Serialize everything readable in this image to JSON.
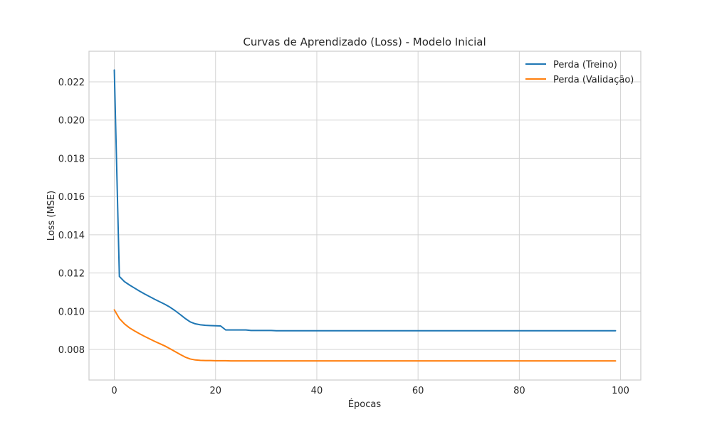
{
  "chart_data": {
    "type": "line",
    "title": "Curvas de Aprendizado (Loss) - Modelo Inicial",
    "xlabel": "Épocas",
    "ylabel": "Loss (MSE)",
    "xlim": [
      -5,
      104
    ],
    "ylim": [
      0.0064,
      0.0236
    ],
    "xticks": [
      0,
      20,
      40,
      60,
      80,
      100
    ],
    "xtick_labels": [
      "0",
      "20",
      "40",
      "60",
      "80",
      "100"
    ],
    "yticks": [
      0.008,
      0.01,
      0.012,
      0.014,
      0.016,
      0.018,
      0.02,
      0.022
    ],
    "ytick_labels": [
      "0.008",
      "0.010",
      "0.012",
      "0.014",
      "0.016",
      "0.018",
      "0.020",
      "0.022"
    ],
    "grid": true,
    "legend_position": "top-right",
    "series": [
      {
        "name": "Perda (Treino)",
        "color": "#1f77b4",
        "x": [
          0,
          1,
          2,
          3,
          4,
          5,
          6,
          7,
          8,
          9,
          10,
          11,
          12,
          13,
          14,
          15,
          16,
          17,
          18,
          19,
          20,
          21,
          22,
          23,
          24,
          25,
          26,
          27,
          28,
          29,
          30,
          31,
          32,
          33,
          34,
          35,
          36,
          37,
          38,
          39,
          40,
          41,
          42,
          43,
          44,
          45,
          46,
          47,
          48,
          49,
          50,
          51,
          52,
          53,
          54,
          55,
          56,
          57,
          58,
          59,
          60,
          61,
          62,
          63,
          64,
          65,
          66,
          67,
          68,
          69,
          70,
          71,
          72,
          73,
          74,
          75,
          76,
          77,
          78,
          79,
          80,
          81,
          82,
          83,
          84,
          85,
          86,
          87,
          88,
          89,
          90,
          91,
          92,
          93,
          94,
          95,
          96,
          97,
          98,
          99
        ],
        "y": [
          0.02262,
          0.01182,
          0.01155,
          0.01137,
          0.01121,
          0.01105,
          0.0109,
          0.01076,
          0.01062,
          0.01049,
          0.01036,
          0.01021,
          0.01003,
          0.00983,
          0.00962,
          0.00944,
          0.00934,
          0.00929,
          0.00926,
          0.00925,
          0.00924,
          0.00923,
          0.00902,
          0.00902,
          0.00902,
          0.00902,
          0.00902,
          0.00899,
          0.00899,
          0.00899,
          0.00899,
          0.00899,
          0.00898,
          0.00898,
          0.00898,
          0.00898,
          0.00898,
          0.00898,
          0.00898,
          0.00898,
          0.00898,
          0.00898,
          0.00898,
          0.00898,
          0.00898,
          0.00898,
          0.00898,
          0.00898,
          0.00898,
          0.00898,
          0.00898,
          0.00898,
          0.00898,
          0.00898,
          0.00898,
          0.00898,
          0.00898,
          0.00898,
          0.00898,
          0.00898,
          0.00898,
          0.00898,
          0.00898,
          0.00898,
          0.00898,
          0.00898,
          0.00898,
          0.00898,
          0.00898,
          0.00898,
          0.00898,
          0.00898,
          0.00898,
          0.00898,
          0.00898,
          0.00898,
          0.00898,
          0.00898,
          0.00898,
          0.00898,
          0.00898,
          0.00898,
          0.00898,
          0.00898,
          0.00898,
          0.00898,
          0.00898,
          0.00898,
          0.00898,
          0.00898,
          0.00898,
          0.00898,
          0.00898,
          0.00898,
          0.00898,
          0.00898,
          0.00898,
          0.00898,
          0.00898,
          0.00898
        ]
      },
      {
        "name": "Perda (Validação)",
        "color": "#ff7f0e",
        "x": [
          0,
          1,
          2,
          3,
          4,
          5,
          6,
          7,
          8,
          9,
          10,
          11,
          12,
          13,
          14,
          15,
          16,
          17,
          18,
          19,
          20,
          21,
          22,
          23,
          24,
          25,
          26,
          27,
          28,
          29,
          30,
          31,
          32,
          33,
          34,
          35,
          36,
          37,
          38,
          39,
          40,
          41,
          42,
          43,
          44,
          45,
          46,
          47,
          48,
          49,
          50,
          51,
          52,
          53,
          54,
          55,
          56,
          57,
          58,
          59,
          60,
          61,
          62,
          63,
          64,
          65,
          66,
          67,
          68,
          69,
          70,
          71,
          72,
          73,
          74,
          75,
          76,
          77,
          78,
          79,
          80,
          81,
          82,
          83,
          84,
          85,
          86,
          87,
          88,
          89,
          90,
          91,
          92,
          93,
          94,
          95,
          96,
          97,
          98,
          99
        ],
        "y": [
          0.01007,
          0.00962,
          0.00934,
          0.00913,
          0.00897,
          0.00882,
          0.00868,
          0.00855,
          0.00842,
          0.0083,
          0.00818,
          0.00804,
          0.00789,
          0.00774,
          0.0076,
          0.0075,
          0.00745,
          0.00743,
          0.00742,
          0.00742,
          0.00741,
          0.00741,
          0.00741,
          0.0074,
          0.0074,
          0.0074,
          0.0074,
          0.0074,
          0.0074,
          0.0074,
          0.0074,
          0.0074,
          0.0074,
          0.0074,
          0.0074,
          0.0074,
          0.0074,
          0.0074,
          0.0074,
          0.0074,
          0.0074,
          0.0074,
          0.0074,
          0.0074,
          0.0074,
          0.0074,
          0.0074,
          0.0074,
          0.0074,
          0.0074,
          0.0074,
          0.0074,
          0.0074,
          0.0074,
          0.0074,
          0.0074,
          0.0074,
          0.0074,
          0.0074,
          0.0074,
          0.0074,
          0.0074,
          0.0074,
          0.0074,
          0.0074,
          0.0074,
          0.0074,
          0.0074,
          0.0074,
          0.0074,
          0.0074,
          0.0074,
          0.0074,
          0.0074,
          0.0074,
          0.0074,
          0.0074,
          0.0074,
          0.0074,
          0.0074,
          0.0074,
          0.0074,
          0.0074,
          0.0074,
          0.0074,
          0.0074,
          0.0074,
          0.0074,
          0.0074,
          0.0074,
          0.0074,
          0.0074,
          0.0074,
          0.0074,
          0.0074,
          0.0074,
          0.0074,
          0.0074,
          0.0074,
          0.0074
        ]
      }
    ]
  }
}
